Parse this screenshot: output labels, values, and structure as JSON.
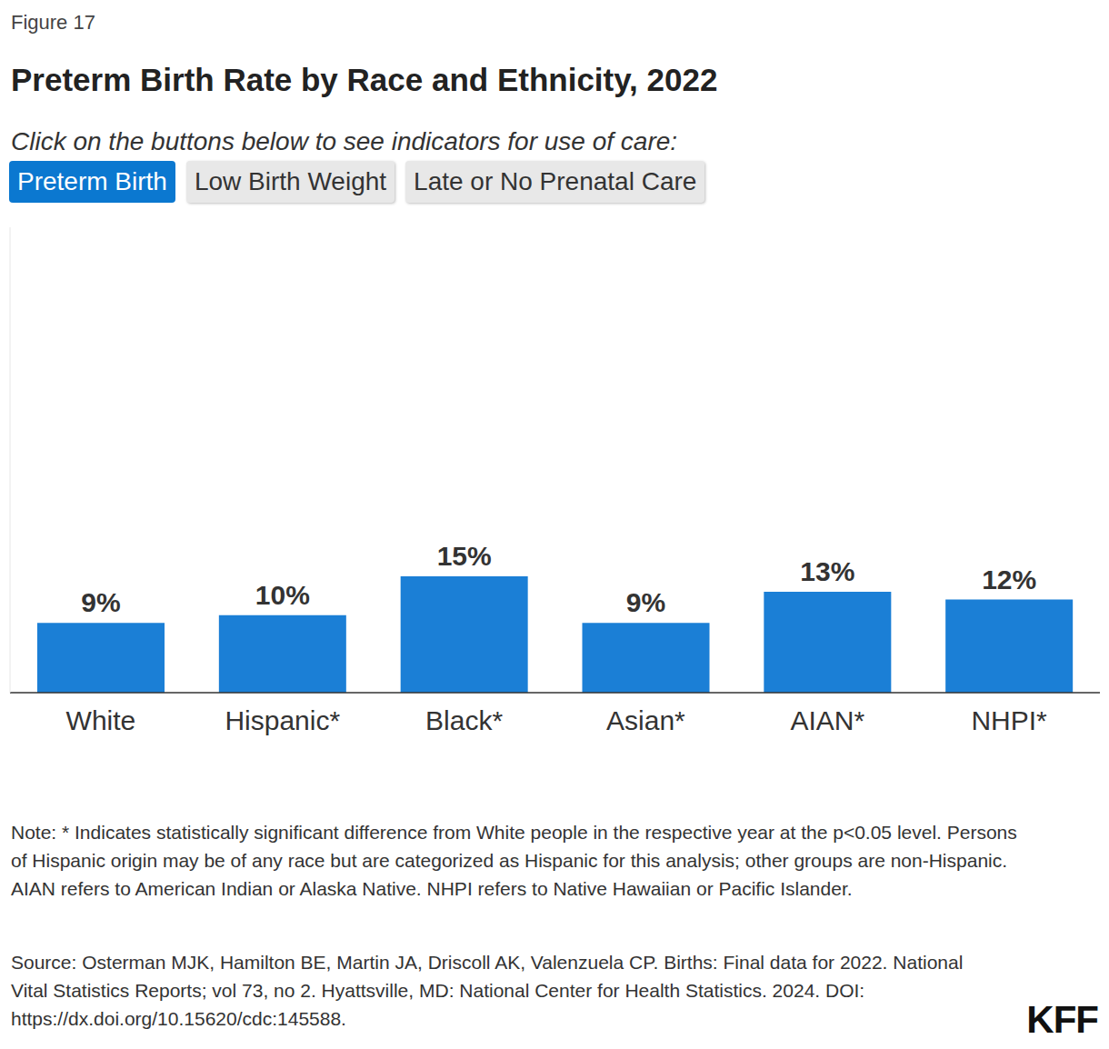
{
  "figure_label": "Figure 17",
  "chart_data": {
    "type": "bar",
    "title": "Preterm Birth Rate by Race and Ethnicity, 2022",
    "subtitle": "Click on the buttons below to see indicators for use of care:",
    "categories": [
      "White",
      "Hispanic*",
      "Black*",
      "Asian*",
      "AIAN*",
      "NHPI*"
    ],
    "values": [
      9,
      10,
      15,
      9,
      13,
      12
    ],
    "value_labels": [
      "9%",
      "10%",
      "15%",
      "9%",
      "13%",
      "12%"
    ],
    "color": "#1b7fd6",
    "ylim": [
      0,
      60
    ],
    "data_labels": true,
    "tick_labels": "x",
    "grid": false
  },
  "buttons": [
    "Preterm Birth",
    "Low Birth Weight",
    "Late or No Prenatal Care"
  ],
  "active_button": "Preterm Birth",
  "note": "Note: * Indicates statistically significant difference from White people in the respective year at the p<0.05 level. Persons of Hispanic origin may be of any race but are categorized as Hispanic for this analysis; other groups are non-Hispanic. AIAN refers to American Indian or Alaska Native. NHPI refers to Native Hawaiian or Pacific Islander.",
  "source": "Source: Osterman MJK, Hamilton BE, Martin JA, Driscoll AK, Valenzuela CP. Births: Final data for 2022. National Vital Statistics Reports; vol 73, no 2. Hyattsville, MD: National Center for Health Statistics. 2024. DOI: https://dx.doi.org/10.15620/cdc:145588.",
  "logo": "KFF"
}
